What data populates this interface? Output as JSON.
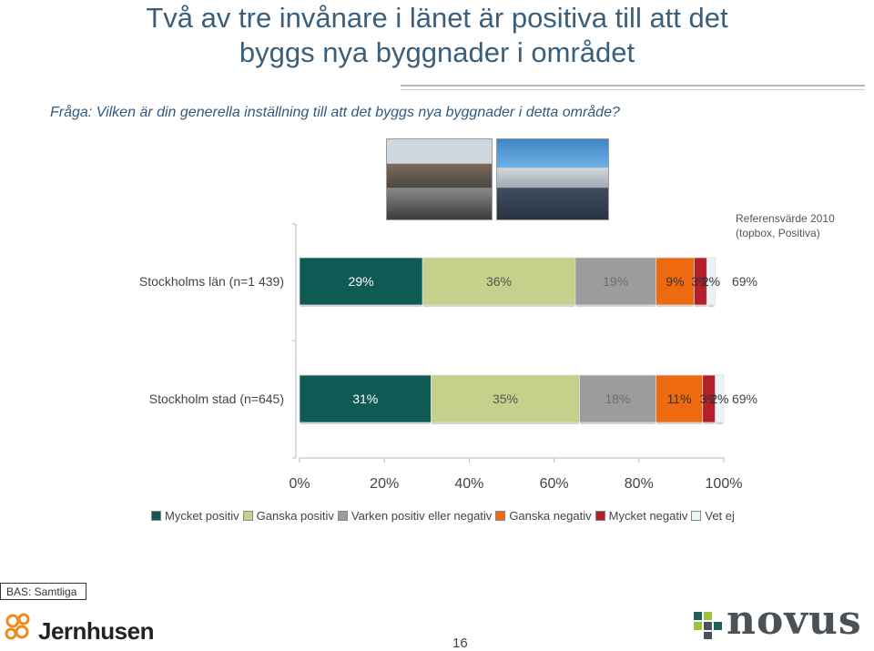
{
  "header": {
    "title_line1": "Två av tre invånare i länet är positiva till att det",
    "title_line2": "byggs nya byggnader i området",
    "question": "Fråga: Vilken är din generella inställning till att det byggs nya byggnader i detta område?"
  },
  "reference": {
    "line1": "Referensvärde 2010",
    "line2": "(topbox, Positiva)"
  },
  "chart_data": {
    "type": "bar",
    "orientation": "horizontal-stacked-100",
    "categories": [
      "Stockholms län (n=1 439)",
      "Stockholm stad (n=645)"
    ],
    "series": [
      {
        "name": "Mycket positiv",
        "values": [
          29,
          31
        ],
        "labels": [
          "29%",
          "31%"
        ],
        "color": "#0f5a55",
        "text_color": "#ffffff"
      },
      {
        "name": "Ganska positiv",
        "values": [
          36,
          35
        ],
        "labels": [
          "36%",
          "35%"
        ],
        "color": "#c5d18a",
        "text_color": "#555555"
      },
      {
        "name": "Varken positiv eller negativ",
        "values": [
          19,
          18
        ],
        "labels": [
          "19%",
          "18%"
        ],
        "color": "#9c9c9c",
        "text_color": "#6e6e6e"
      },
      {
        "name": "Ganska negativ",
        "values": [
          9,
          11
        ],
        "labels": [
          "9%",
          "11%"
        ],
        "color": "#ee6a10",
        "text_color": "#333333"
      },
      {
        "name": "Mycket negativ",
        "values": [
          3,
          3
        ],
        "labels": [
          "3%",
          "3%"
        ],
        "color": "#b4202a",
        "text_color": "#333333"
      },
      {
        "name": "Vet ej",
        "values": [
          2,
          2
        ],
        "labels": [
          "2%",
          "2%"
        ],
        "color": "#e8f4f8",
        "text_color": "#333333"
      }
    ],
    "reference_values": [
      "69%",
      "69%"
    ],
    "xlim": [
      0,
      100
    ],
    "xticks": [
      "0%",
      "20%",
      "40%",
      "60%",
      "80%",
      "100%"
    ],
    "grid": false,
    "legend_position": "bottom"
  },
  "footer": {
    "bas": "BAS: Samtliga",
    "page": "16",
    "logo_left": "Jernhusen",
    "logo_right": "novus"
  }
}
